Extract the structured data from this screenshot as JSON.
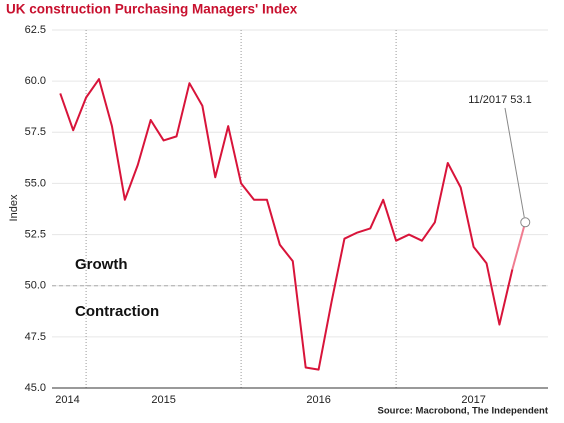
{
  "chart_data": {
    "type": "line",
    "title": "UK construction Purchasing Managers' Index",
    "y_label": "Index",
    "source": "Source: Macrobond, The Independent",
    "annotations": [
      "Growth",
      "Contraction"
    ],
    "callout": "11/2017 53.1",
    "x": [
      2014.8333,
      2014.9167,
      2015.0,
      2015.0833,
      2015.1667,
      2015.25,
      2015.3333,
      2015.4167,
      2015.5,
      2015.5833,
      2015.6667,
      2015.75,
      2015.8333,
      2015.9167,
      2016.0,
      2016.0833,
      2016.1667,
      2016.25,
      2016.3333,
      2016.4167,
      2016.5,
      2016.5833,
      2016.6667,
      2016.75,
      2016.8333,
      2016.9167,
      2017.0,
      2017.0833,
      2017.1667,
      2017.25,
      2017.3333,
      2017.4167,
      2017.5,
      2017.5833,
      2017.6667,
      2017.75,
      2017.8333
    ],
    "series": [
      {
        "name": "UK construction PMI",
        "color": "#d8143a",
        "highlight_color": "#f07c90",
        "values": [
          59.4,
          57.6,
          59.2,
          60.1,
          57.8,
          54.2,
          55.9,
          58.1,
          57.1,
          57.3,
          59.9,
          58.8,
          55.3,
          57.8,
          55.0,
          54.2,
          54.2,
          52.0,
          51.2,
          46.0,
          45.9,
          49.2,
          52.3,
          52.6,
          52.8,
          54.2,
          52.2,
          52.5,
          52.2,
          53.1,
          56.0,
          54.8,
          51.9,
          51.1,
          48.1,
          50.8,
          53.1
        ]
      }
    ],
    "xlim": [
      2014.78,
      2017.98
    ],
    "xticks": [
      {
        "value": 2014.88,
        "label": "2014"
      },
      {
        "value": 2015.5,
        "label": "2015"
      },
      {
        "value": 2016.5,
        "label": "2016"
      },
      {
        "value": 2017.5,
        "label": "2017"
      }
    ],
    "year_lines": [
      2015,
      2016,
      2017
    ],
    "ylim": [
      45,
      62.5
    ],
    "yticks": [
      {
        "value": 45,
        "label": "45.0"
      },
      {
        "value": 47.5,
        "label": "47.5"
      },
      {
        "value": 50,
        "label": "50.0"
      },
      {
        "value": 52.5,
        "label": "52.5"
      },
      {
        "value": 55,
        "label": "55.0"
      },
      {
        "value": 57.5,
        "label": "57.5"
      },
      {
        "value": 60,
        "label": "60.0"
      },
      {
        "value": 62.5,
        "label": "62.5"
      }
    ],
    "reference_line": 50,
    "grid": true
  }
}
